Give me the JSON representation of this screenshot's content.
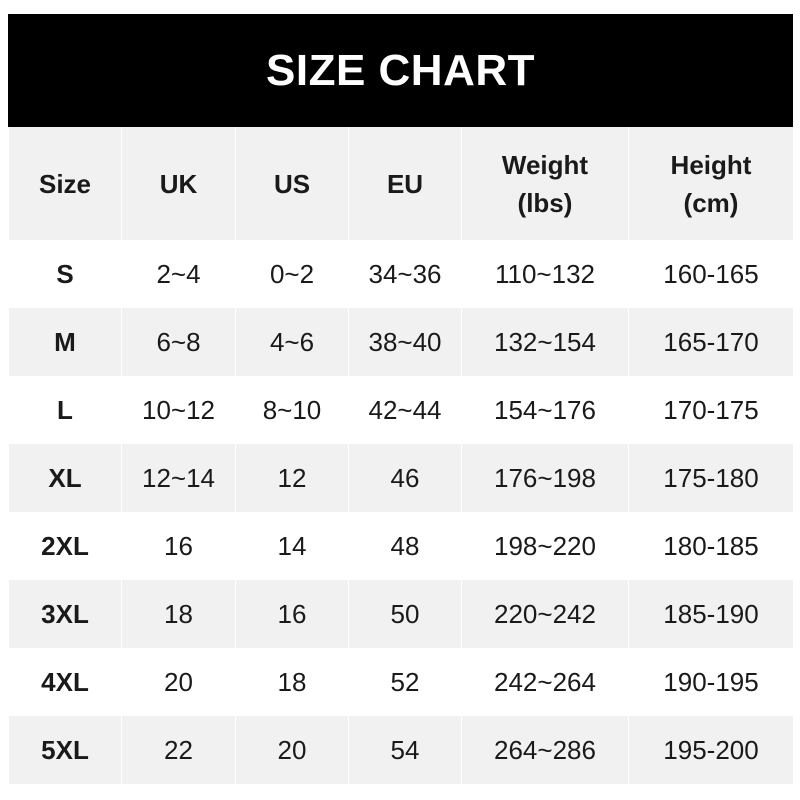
{
  "title": "SIZE CHART",
  "headers": [
    "Size",
    "UK",
    "US",
    "EU",
    "Weight (lbs)",
    "Height (cm)"
  ],
  "header_lines": {
    "weight": [
      "Weight",
      "(lbs)"
    ],
    "height": [
      "Height",
      "(cm)"
    ]
  },
  "rows": [
    [
      "S",
      "2~4",
      "0~2",
      "34~36",
      "110~132",
      "160-165"
    ],
    [
      "M",
      "6~8",
      "4~6",
      "38~40",
      "132~154",
      "165-170"
    ],
    [
      "L",
      "10~12",
      "8~10",
      "42~44",
      "154~176",
      "170-175"
    ],
    [
      "XL",
      "12~14",
      "12",
      "46",
      "176~198",
      "175-180"
    ],
    [
      "2XL",
      "16",
      "14",
      "48",
      "198~220",
      "180-185"
    ],
    [
      "3XL",
      "18",
      "16",
      "50",
      "220~242",
      "185-190"
    ],
    [
      "4XL",
      "20",
      "18",
      "52",
      "242~264",
      "190-195"
    ],
    [
      "5XL",
      "22",
      "20",
      "54",
      "264~286",
      "195-200"
    ]
  ],
  "colors": {
    "banner": "#000000",
    "stripe": "#f1f1f1",
    "text": "#1a1a1a"
  }
}
